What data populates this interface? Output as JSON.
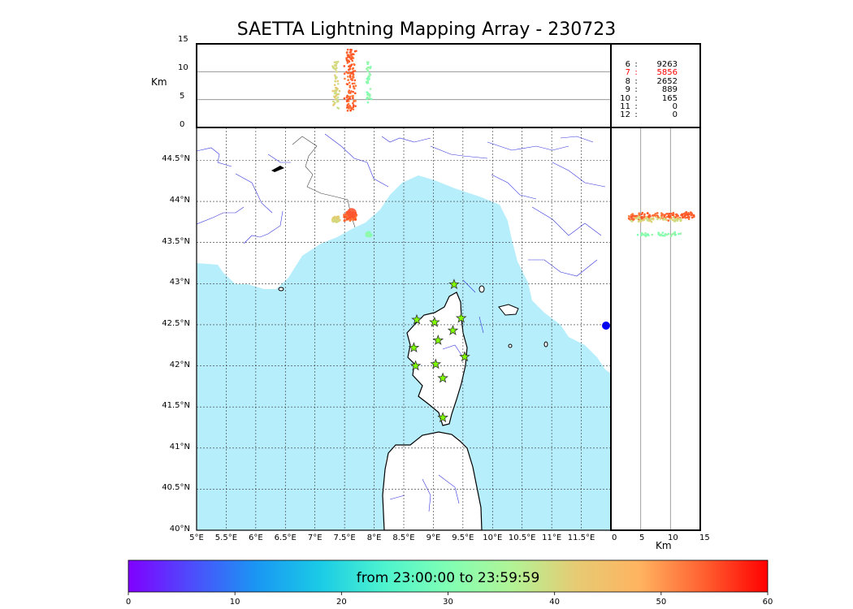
{
  "title": "SAETTA Lightning Mapping Array - 230723",
  "time_range": "from 23:00:00 to 23:59:59",
  "altitude_axis": {
    "label": "Km",
    "ticks": [
      "0",
      "5",
      "10",
      "15"
    ]
  },
  "lon_ticks": [
    "5°E",
    "5.5°E",
    "6°E",
    "6.5°E",
    "7°E",
    "7.5°E",
    "8°E",
    "8.5°E",
    "9°E",
    "9.5°E",
    "10°E",
    "10.5°E",
    "11°E",
    "11.5°E"
  ],
  "lat_ticks": [
    "40°N",
    "40.5°N",
    "41°N",
    "41.5°N",
    "42°N",
    "42.5°N",
    "43°N",
    "43.5°N",
    "44°N",
    "44.5°N"
  ],
  "station_counts": [
    {
      "stations": "6",
      "count": "9263",
      "highlight": false
    },
    {
      "stations": "7",
      "count": "5856",
      "highlight": true
    },
    {
      "stations": "8",
      "count": "2652",
      "highlight": false
    },
    {
      "stations": "9",
      "count": "889",
      "highlight": false
    },
    {
      "stations": "10",
      "count": "165",
      "highlight": false
    },
    {
      "stations": "11",
      "count": "0",
      "highlight": false
    },
    {
      "stations": "12",
      "count": "0",
      "highlight": false
    }
  ],
  "colorbar": {
    "ticks": [
      "0",
      "10",
      "20",
      "30",
      "40",
      "50",
      "60"
    ]
  },
  "colors": {
    "sea": "#b7eefb",
    "highlight": "#ff0000",
    "station_marker": "#7fff00"
  },
  "sensor_stations": [
    {
      "lon": 9.35,
      "lat": 42.99
    },
    {
      "lon": 8.72,
      "lat": 42.56
    },
    {
      "lon": 9.02,
      "lat": 42.53
    },
    {
      "lon": 9.47,
      "lat": 42.58
    },
    {
      "lon": 9.33,
      "lat": 42.43
    },
    {
      "lon": 9.08,
      "lat": 42.31
    },
    {
      "lon": 8.67,
      "lat": 42.22
    },
    {
      "lon": 9.53,
      "lat": 42.11
    },
    {
      "lon": 8.7,
      "lat": 42.0
    },
    {
      "lon": 9.04,
      "lat": 42.02
    },
    {
      "lon": 9.16,
      "lat": 41.85
    },
    {
      "lon": 9.16,
      "lat": 41.37
    }
  ]
}
